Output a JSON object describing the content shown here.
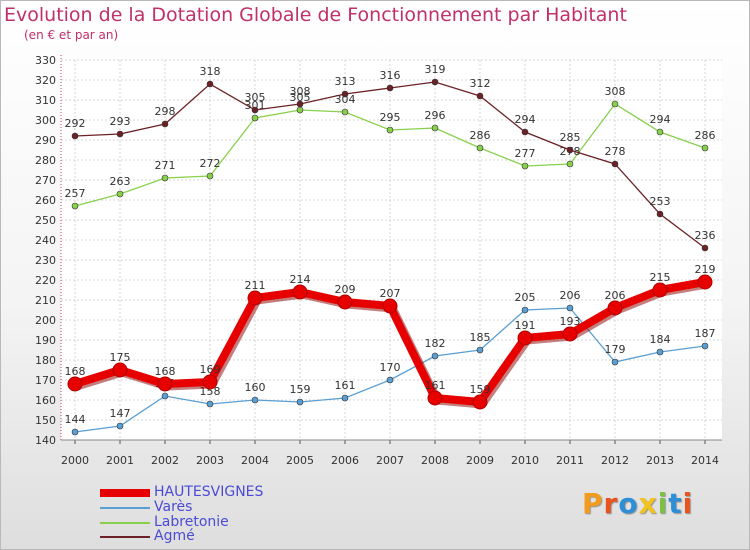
{
  "chart_data": {
    "type": "line",
    "title": "Evolution de la Dotation Globale de Fonctionnement par Habitant",
    "subtitle": "(en € et par an)",
    "categories": [
      "2000",
      "2001",
      "2002",
      "2003",
      "2004",
      "2005",
      "2006",
      "2007",
      "2008",
      "2009",
      "2010",
      "2011",
      "2012",
      "2013",
      "2014"
    ],
    "ylim": [
      140,
      330
    ],
    "ytick_step": 10,
    "grid": true,
    "xlabel": "",
    "ylabel": "",
    "series": [
      {
        "name": "HAUTESVIGNES",
        "color": "#e60000",
        "emphasis": true,
        "values": [
          168,
          175,
          168,
          169,
          211,
          214,
          209,
          207,
          161,
          159,
          191,
          193,
          206,
          215,
          219
        ]
      },
      {
        "name": "Varès",
        "color": "#5a9fd4",
        "emphasis": false,
        "values": [
          144,
          147,
          162,
          158,
          160,
          159,
          161,
          170,
          182,
          185,
          205,
          206,
          179,
          184,
          187
        ]
      },
      {
        "name": "Labretonie",
        "color": "#88d04c",
        "emphasis": false,
        "values": [
          257,
          263,
          271,
          272,
          301,
          305,
          304,
          295,
          296,
          286,
          277,
          278,
          308,
          294,
          286
        ]
      },
      {
        "name": "Agmé",
        "color": "#6b2226",
        "emphasis": false,
        "values": [
          292,
          293,
          298,
          318,
          305,
          308,
          313,
          316,
          319,
          312,
          294,
          285,
          278,
          253,
          236
        ]
      }
    ]
  },
  "logo": {
    "text": "Proxiti"
  }
}
